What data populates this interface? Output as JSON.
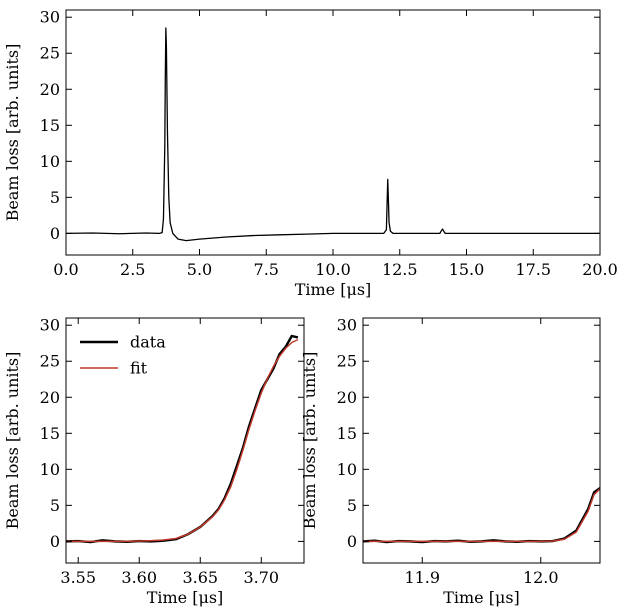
{
  "chart_data": [
    {
      "id": "top",
      "type": "line",
      "xlabel": "Time [μs]",
      "ylabel": "Beam loss [arb. units]",
      "xlim": [
        0,
        20
      ],
      "ylim": [
        -3,
        31
      ],
      "xticks": [
        0.0,
        2.5,
        5.0,
        7.5,
        10.0,
        12.5,
        15.0,
        17.5,
        20.0
      ],
      "xtick_labels": [
        "0.0",
        "2.5",
        "5.0",
        "7.5",
        "10.0",
        "12.5",
        "15.0",
        "17.5",
        "20.0"
      ],
      "yticks": [
        0,
        5,
        10,
        15,
        20,
        25,
        30
      ],
      "ytick_labels": [
        "0",
        "5",
        "10",
        "15",
        "20",
        "25",
        "30"
      ],
      "series": [
        {
          "color": "#000000",
          "x": [
            0.0,
            1.0,
            2.0,
            3.0,
            3.5,
            3.6,
            3.65,
            3.7,
            3.72,
            3.74,
            3.76,
            3.8,
            3.85,
            3.9,
            4.0,
            4.2,
            4.5,
            5.0,
            6.0,
            7.0,
            8.0,
            9.0,
            10.0,
            11.0,
            11.9,
            12.0,
            12.05,
            12.08,
            12.1,
            12.15,
            12.25,
            12.5,
            13.0,
            14.0,
            14.1,
            14.2,
            15.0,
            16.0,
            17.0,
            18.0,
            19.0,
            20.0
          ],
          "y": [
            0.0,
            0.05,
            -0.05,
            0.05,
            0.0,
            0.1,
            2.0,
            12.0,
            22.0,
            28.5,
            26.0,
            14.0,
            5.0,
            1.5,
            0.0,
            -0.8,
            -1.0,
            -0.8,
            -0.5,
            -0.3,
            -0.2,
            -0.1,
            0.0,
            0.0,
            0.0,
            0.5,
            7.5,
            4.0,
            1.5,
            0.3,
            0.0,
            0.0,
            0.0,
            0.0,
            0.6,
            0.0,
            0.0,
            0.0,
            0.0,
            0.0,
            0.0,
            0.0
          ]
        }
      ]
    },
    {
      "id": "bottom-left",
      "type": "line",
      "xlabel": "Time [μs]",
      "ylabel": "Beam loss [arb. units]",
      "xlim": [
        3.54,
        3.735
      ],
      "ylim": [
        -3,
        31
      ],
      "xticks": [
        3.55,
        3.6,
        3.65,
        3.7
      ],
      "xtick_labels": [
        "3.55",
        "3.60",
        "3.65",
        "3.70"
      ],
      "yticks": [
        0,
        5,
        10,
        15,
        20,
        25,
        30
      ],
      "ytick_labels": [
        "0",
        "5",
        "10",
        "15",
        "20",
        "25",
        "30"
      ],
      "legend": {
        "position": "upper-left",
        "entries": [
          "data",
          "fit"
        ]
      },
      "series": [
        {
          "name": "data",
          "color": "#000000",
          "x": [
            3.54,
            3.55,
            3.56,
            3.57,
            3.58,
            3.59,
            3.6,
            3.61,
            3.62,
            3.63,
            3.64,
            3.65,
            3.66,
            3.665,
            3.67,
            3.675,
            3.68,
            3.685,
            3.69,
            3.695,
            3.7,
            3.705,
            3.71,
            3.715,
            3.72,
            3.725,
            3.73
          ],
          "y": [
            0.0,
            0.05,
            -0.1,
            0.15,
            0.0,
            -0.05,
            0.05,
            0.0,
            0.1,
            0.3,
            1.0,
            2.0,
            3.5,
            4.5,
            6.0,
            8.0,
            10.5,
            13.0,
            16.0,
            18.5,
            21.0,
            22.5,
            24.0,
            26.0,
            27.0,
            28.5,
            28.3
          ]
        },
        {
          "name": "fit",
          "color": "#c0392b",
          "x": [
            3.54,
            3.55,
            3.56,
            3.57,
            3.58,
            3.59,
            3.6,
            3.61,
            3.62,
            3.63,
            3.64,
            3.65,
            3.66,
            3.665,
            3.67,
            3.675,
            3.68,
            3.685,
            3.69,
            3.695,
            3.7,
            3.705,
            3.71,
            3.715,
            3.72,
            3.725,
            3.73
          ],
          "y": [
            0.0,
            0.0,
            0.0,
            0.0,
            0.0,
            0.0,
            0.05,
            0.1,
            0.2,
            0.4,
            1.0,
            2.0,
            3.4,
            4.4,
            5.8,
            7.6,
            10.0,
            12.7,
            15.6,
            18.2,
            20.6,
            22.6,
            24.3,
            25.7,
            26.8,
            27.6,
            28.0
          ]
        }
      ]
    },
    {
      "id": "bottom-right",
      "type": "line",
      "xlabel": "Time [μs]",
      "ylabel": "Beam loss [arb. units]",
      "xlim": [
        11.85,
        12.05
      ],
      "ylim": [
        -3,
        31
      ],
      "xticks": [
        11.9,
        12.0
      ],
      "xtick_labels": [
        "11.9",
        "12.0"
      ],
      "yticks": [
        0,
        5,
        10,
        15,
        20,
        25,
        30
      ],
      "ytick_labels": [
        "0",
        "5",
        "10",
        "15",
        "20",
        "25",
        "30"
      ],
      "series": [
        {
          "name": "data",
          "color": "#000000",
          "x": [
            11.85,
            11.86,
            11.87,
            11.88,
            11.89,
            11.9,
            11.91,
            11.92,
            11.93,
            11.94,
            11.95,
            11.96,
            11.97,
            11.98,
            11.99,
            12.0,
            12.01,
            12.02,
            12.03,
            12.04,
            12.045,
            12.05
          ],
          "y": [
            0.0,
            0.1,
            -0.1,
            0.05,
            0.0,
            -0.1,
            0.05,
            0.0,
            0.1,
            -0.05,
            0.0,
            0.15,
            0.0,
            -0.05,
            0.05,
            0.0,
            0.05,
            0.4,
            1.5,
            4.5,
            6.8,
            7.4
          ]
        },
        {
          "name": "fit",
          "color": "#c0392b",
          "x": [
            11.85,
            11.87,
            11.89,
            11.91,
            11.93,
            11.95,
            11.97,
            11.99,
            12.0,
            12.01,
            12.02,
            12.03,
            12.04,
            12.045,
            12.05
          ],
          "y": [
            0.0,
            0.0,
            0.0,
            0.0,
            0.0,
            0.0,
            0.0,
            0.0,
            0.0,
            0.05,
            0.3,
            1.3,
            4.2,
            6.5,
            7.3
          ]
        }
      ]
    }
  ]
}
